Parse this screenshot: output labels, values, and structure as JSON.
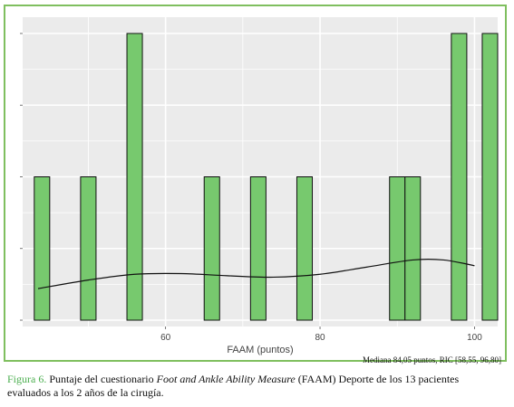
{
  "chart_data": {
    "type": "bar",
    "title": "",
    "xlabel": "FAAM (puntos)",
    "ylabel": "",
    "x_ticks": [
      60,
      80,
      100
    ],
    "xlim": [
      41.5,
      103
    ],
    "ylim": [
      0,
      2
    ],
    "y_ticks": [
      0,
      0.5,
      1,
      1.5,
      2
    ],
    "bins": [
      {
        "x": 44,
        "count": 1
      },
      {
        "x": 50,
        "count": 1
      },
      {
        "x": 56,
        "count": 2
      },
      {
        "x": 66,
        "count": 1
      },
      {
        "x": 72,
        "count": 1
      },
      {
        "x": 78,
        "count": 1
      },
      {
        "x": 90,
        "count": 1
      },
      {
        "x": 92,
        "count": 1
      },
      {
        "x": 98,
        "count": 2
      },
      {
        "x": 102,
        "count": 2
      }
    ],
    "density_curve": [
      {
        "x": 43.5,
        "y": 0.22
      },
      {
        "x": 50,
        "y": 0.28
      },
      {
        "x": 56,
        "y": 0.32
      },
      {
        "x": 62,
        "y": 0.325
      },
      {
        "x": 68,
        "y": 0.31
      },
      {
        "x": 74,
        "y": 0.3
      },
      {
        "x": 80,
        "y": 0.32
      },
      {
        "x": 86,
        "y": 0.37
      },
      {
        "x": 92,
        "y": 0.42
      },
      {
        "x": 96,
        "y": 0.42
      },
      {
        "x": 100,
        "y": 0.38
      }
    ],
    "bar_color": "#77c96e",
    "panel_color": "#ebebeb",
    "grid": true,
    "annotation": "Mediana 84,05 puntos, RIC [58,55, 96,80]"
  },
  "caption": {
    "label": "Figura 6.",
    "text_before": " Puntaje del cuestionario ",
    "italic": "Foot and Ankle Ability Measure",
    "text_after": " (FAAM) Deporte de los 13 pacientes evaluados a los 2 años de la cirugía."
  }
}
